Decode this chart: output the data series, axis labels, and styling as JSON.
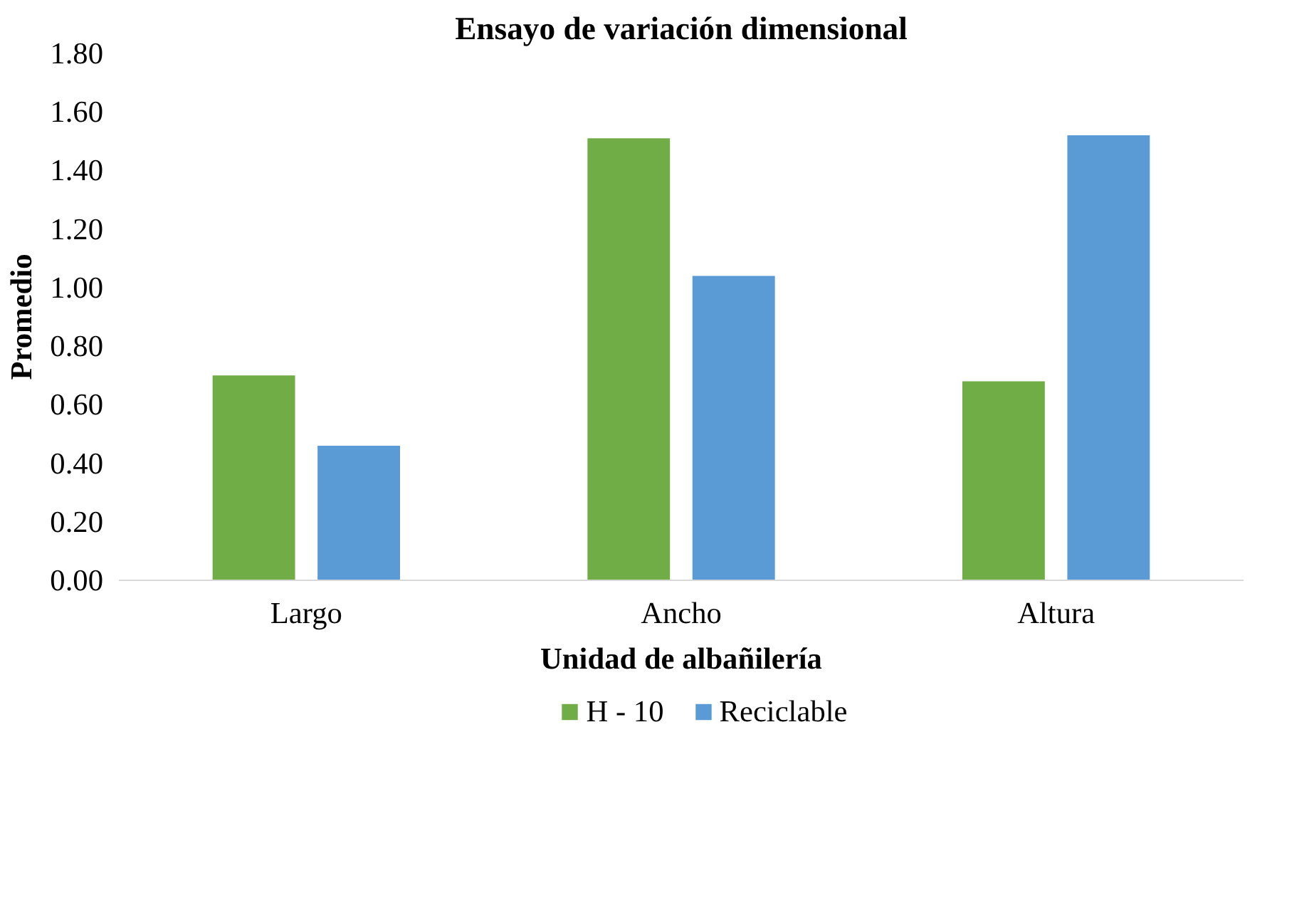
{
  "chart_data": {
    "type": "bar",
    "title": "Ensayo de variación dimensional",
    "xlabel": "Unidad de albañilería",
    "ylabel": "Promedio",
    "categories": [
      "Largo",
      "Ancho",
      "Altura"
    ],
    "series": [
      {
        "name": "H - 10",
        "color": "#70ad47",
        "values": [
          0.7,
          1.51,
          0.68
        ]
      },
      {
        "name": "Reciclable",
        "color": "#5b9bd5",
        "values": [
          0.46,
          1.04,
          1.52
        ]
      }
    ],
    "ylim": [
      0,
      1.8
    ],
    "yticks": [
      {
        "value": 0,
        "label": "0.00"
      },
      {
        "value": 0.2,
        "label": "0.20"
      },
      {
        "value": 0.4,
        "label": "0.40"
      },
      {
        "value": 0.6,
        "label": "0.60"
      },
      {
        "value": 0.8,
        "label": "0.80"
      },
      {
        "value": 1.0,
        "label": "1.00"
      },
      {
        "value": 1.2,
        "label": "1.20"
      },
      {
        "value": 1.4,
        "label": "1.40"
      },
      {
        "value": 1.6,
        "label": "1.60"
      },
      {
        "value": 1.8,
        "label": "1.80"
      }
    ],
    "grid": false,
    "legend": "bottom"
  }
}
